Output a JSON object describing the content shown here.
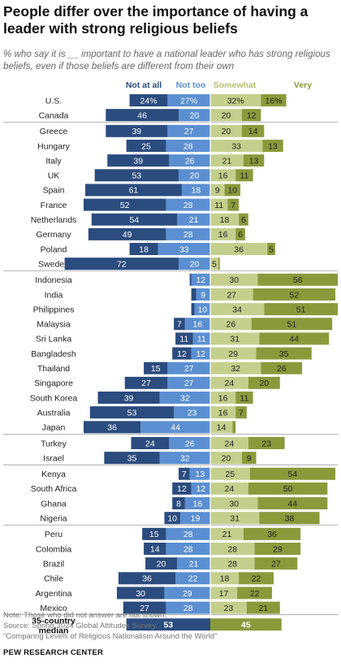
{
  "title": "People differ over the importance of having a leader with strong religious beliefs",
  "subtitle": "% who say it is __ important to have a national leader who has strong religious beliefs, even if those beliefs are different from their own",
  "notes": [
    "Note: Those who did not answer are not shown.",
    "Source: Spring 2024 Global Attitudes Survey.",
    "“Comparing Levels of Religious Nationalism Around the World”"
  ],
  "brand": "PEW RESEARCH CENTER",
  "colors": {
    "not_at_all": "#2b4c7e",
    "not_too": "#5b8fd1",
    "somewhat": "#c5cf8d",
    "very": "#8a9a3b",
    "legend_not_at_all": "#2b4c7e",
    "legend_not_too": "#5b8fd1",
    "legend_somewhat": "#b6c06f",
    "legend_very": "#8a9a3b"
  },
  "chart_data": {
    "type": "bar",
    "orientation": "horizontal-diverging",
    "legend": [
      "Not at all",
      "Not too",
      "Somewhat",
      "Very"
    ],
    "groups": [
      [
        {
          "country": "U.S.",
          "not_at_all": 24,
          "not_too": 27,
          "somewhat": 32,
          "very": 16,
          "pct": true
        },
        {
          "country": "Canada",
          "not_at_all": 46,
          "not_too": 20,
          "somewhat": 20,
          "very": 12
        }
      ],
      [
        {
          "country": "Greece",
          "not_at_all": 39,
          "not_too": 27,
          "somewhat": 20,
          "very": 14
        },
        {
          "country": "Hungary",
          "not_at_all": 25,
          "not_too": 28,
          "somewhat": 33,
          "very": 13
        },
        {
          "country": "Italy",
          "not_at_all": 39,
          "not_too": 26,
          "somewhat": 21,
          "very": 13
        },
        {
          "country": "UK",
          "not_at_all": 53,
          "not_too": 20,
          "somewhat": 16,
          "very": 11
        },
        {
          "country": "Spain",
          "not_at_all": 61,
          "not_too": 18,
          "somewhat": 9,
          "very": 10
        },
        {
          "country": "France",
          "not_at_all": 52,
          "not_too": 28,
          "somewhat": 11,
          "very": 7
        },
        {
          "country": "Netherlands",
          "not_at_all": 54,
          "not_too": 21,
          "somewhat": 18,
          "very": 6
        },
        {
          "country": "Germany",
          "not_at_all": 49,
          "not_too": 28,
          "somewhat": 16,
          "very": 6
        },
        {
          "country": "Poland",
          "not_at_all": 18,
          "not_too": 33,
          "somewhat": 36,
          "very": 5
        },
        {
          "country": "Sweden",
          "not_at_all": 72,
          "not_too": 20,
          "somewhat": 5,
          "very": 1
        }
      ],
      [
        {
          "country": "Indonesia",
          "not_at_all": 1,
          "not_too": 12,
          "somewhat": 30,
          "very": 56
        },
        {
          "country": "India",
          "not_at_all": 3,
          "not_too": 9,
          "somewhat": 27,
          "very": 52
        },
        {
          "country": "Philippines",
          "not_at_all": 2,
          "not_too": 10,
          "somewhat": 34,
          "very": 51
        },
        {
          "country": "Malaysia",
          "not_at_all": 7,
          "not_too": 16,
          "somewhat": 26,
          "very": 51
        },
        {
          "country": "Sri Lanka",
          "not_at_all": 11,
          "not_too": 11,
          "somewhat": 31,
          "very": 44
        },
        {
          "country": "Bangladesh",
          "not_at_all": 12,
          "not_too": 12,
          "somewhat": 29,
          "very": 35
        },
        {
          "country": "Thailand",
          "not_at_all": 15,
          "not_too": 27,
          "somewhat": 32,
          "very": 26
        },
        {
          "country": "Singapore",
          "not_at_all": 27,
          "not_too": 27,
          "somewhat": 24,
          "very": 20
        },
        {
          "country": "South Korea",
          "not_at_all": 39,
          "not_too": 32,
          "somewhat": 16,
          "very": 11
        },
        {
          "country": "Australia",
          "not_at_all": 53,
          "not_too": 23,
          "somewhat": 16,
          "very": 7
        },
        {
          "country": "Japan",
          "not_at_all": 36,
          "not_too": 44,
          "somewhat": 14,
          "very": 2
        }
      ],
      [
        {
          "country": "Turkey",
          "not_at_all": 24,
          "not_too": 26,
          "somewhat": 24,
          "very": 23
        },
        {
          "country": "Israel",
          "not_at_all": 35,
          "not_too": 32,
          "somewhat": 20,
          "very": 9
        }
      ],
      [
        {
          "country": "Kenya",
          "not_at_all": 7,
          "not_too": 13,
          "somewhat": 25,
          "very": 54
        },
        {
          "country": "South Africa",
          "not_at_all": 12,
          "not_too": 12,
          "somewhat": 24,
          "very": 50
        },
        {
          "country": "Ghana",
          "not_at_all": 8,
          "not_too": 16,
          "somewhat": 30,
          "very": 44
        },
        {
          "country": "Nigeria",
          "not_at_all": 10,
          "not_too": 19,
          "somewhat": 31,
          "very": 38
        }
      ],
      [
        {
          "country": "Peru",
          "not_at_all": 15,
          "not_too": 28,
          "somewhat": 21,
          "very": 36
        },
        {
          "country": "Colombia",
          "not_at_all": 14,
          "not_too": 28,
          "somewhat": 28,
          "very": 29
        },
        {
          "country": "Brazil",
          "not_at_all": 20,
          "not_too": 21,
          "somewhat": 28,
          "very": 27
        },
        {
          "country": "Chile",
          "not_at_all": 36,
          "not_too": 22,
          "somewhat": 18,
          "very": 22
        },
        {
          "country": "Argentina",
          "not_at_all": 30,
          "not_too": 29,
          "somewhat": 17,
          "very": 22
        },
        {
          "country": "Mexico",
          "not_at_all": 27,
          "not_too": 28,
          "somewhat": 23,
          "very": 21
        }
      ]
    ],
    "median": {
      "label": "35-country median",
      "label_lines": [
        "35-country",
        "median"
      ],
      "not_important": 53,
      "important": 45
    }
  }
}
